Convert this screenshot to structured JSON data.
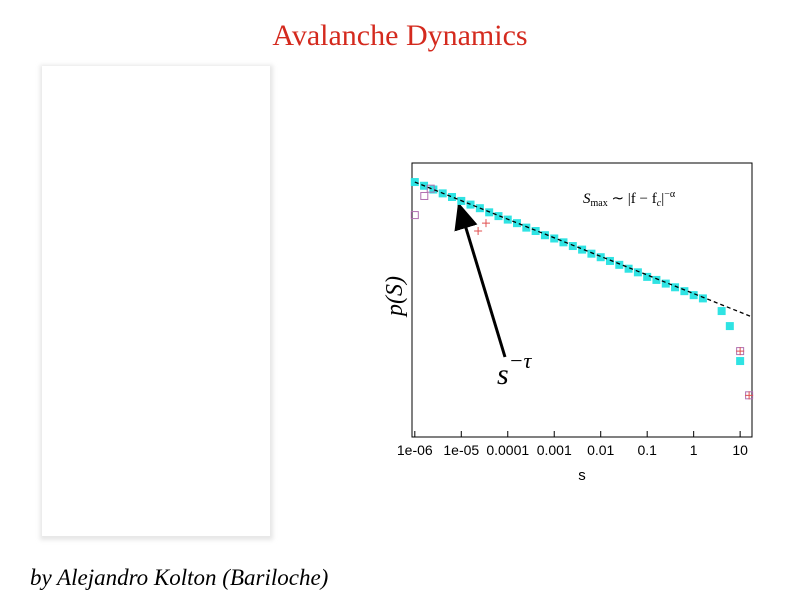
{
  "title": "Avalanche Dynamics",
  "byline": "by  Alejandro Kolton (Bariloche)",
  "chart_data": {
    "type": "scatter",
    "x_label": "s",
    "y_label": "p(S)",
    "xscale": "log",
    "yscale": "log",
    "xlim": [
      8.7e-07,
      18
    ],
    "ylim": [
      1e-06,
      7
    ],
    "xticks": [
      {
        "value": 1e-06,
        "label": "1e-06"
      },
      {
        "value": 1e-05,
        "label": "1e-05"
      },
      0.0001,
      0.001,
      0.01,
      0.1,
      1,
      10
    ],
    "annotations": [
      {
        "parts": [
          "S",
          "max",
          " ∼ |f − f",
          "c",
          "|",
          "−α"
        ]
      },
      {
        "parts": [
          "s",
          "−τ"
        ]
      }
    ],
    "series": [
      {
        "marker": "square-filled",
        "color": "#2fe3e3",
        "x": [
          1e-06,
          1.58e-06,
          2.51e-06,
          3.98e-06,
          6.31e-06,
          1e-05,
          1.58e-05,
          2.51e-05,
          3.98e-05,
          6.31e-05,
          0.0001,
          0.000158,
          0.000251,
          0.000398,
          0.000631,
          0.001,
          0.00158,
          0.00251,
          0.00398,
          0.00631,
          0.01,
          0.0158,
          0.0251,
          0.0398,
          0.0631,
          0.1,
          0.158,
          0.251,
          0.398,
          0.631,
          1,
          1.58,
          4,
          6,
          10
        ],
        "values": [
          2.34,
          1.89,
          1.52,
          1.22,
          0.99,
          0.79,
          0.64,
          0.52,
          0.41,
          0.33,
          0.27,
          0.22,
          0.17,
          0.14,
          0.11,
          0.091,
          0.073,
          0.059,
          0.048,
          0.038,
          0.031,
          0.025,
          0.02,
          0.016,
          0.013,
          0.01,
          0.0084,
          0.0068,
          0.0055,
          0.0044,
          0.0035,
          0.0029,
          0.0014,
          0.00059,
          7.9e-05
        ]
      },
      {
        "marker": "square-open",
        "color": "#b070b0",
        "x": [
          1e-06,
          1.6e-06,
          2.2e-06,
          10,
          15.6
        ],
        "values": [
          0.35,
          1.05,
          1.6,
          0.00014,
          1.1e-05
        ]
      },
      {
        "marker": "plus",
        "color": "#e05050",
        "x": [
          2.3e-05,
          3.4e-05,
          10,
          15.6
        ],
        "values": [
          0.14,
          0.22,
          0.00014,
          1.1e-05
        ]
      },
      {
        "marker": "dashed-line",
        "color": "#000000",
        "x": [
          1e-06,
          18
        ],
        "values": [
          2.34,
          0.001
        ]
      }
    ]
  }
}
